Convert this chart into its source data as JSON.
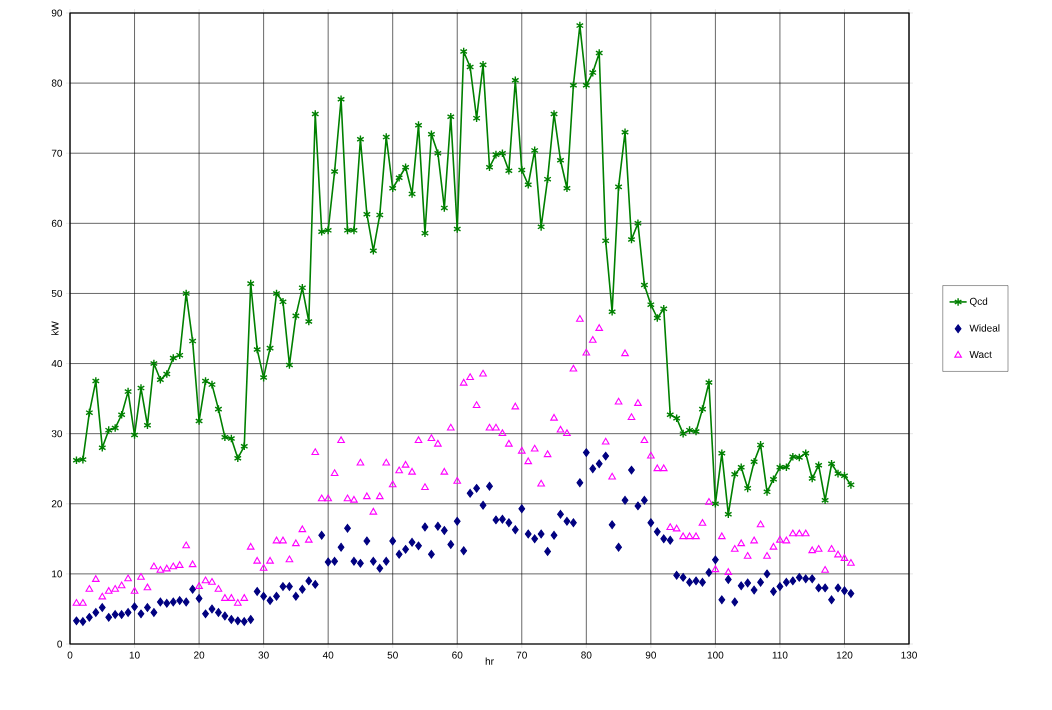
{
  "chart_data": {
    "type": "line",
    "xlabel": "hr",
    "ylabel": "kW",
    "x": [
      1,
      2,
      3,
      4,
      5,
      6,
      7,
      8,
      9,
      10,
      11,
      12,
      13,
      14,
      15,
      16,
      17,
      18,
      19,
      20,
      21,
      22,
      23,
      24,
      25,
      26,
      27,
      28,
      29,
      30,
      31,
      32,
      33,
      34,
      35,
      36,
      37,
      38,
      39,
      40,
      41,
      42,
      43,
      44,
      45,
      46,
      47,
      48,
      49,
      50,
      51,
      52,
      53,
      54,
      55,
      56,
      57,
      58,
      59,
      60,
      61,
      62,
      63,
      64,
      65,
      66,
      67,
      68,
      69,
      70,
      71,
      72,
      73,
      74,
      75,
      76,
      77,
      78,
      79,
      80,
      81,
      82,
      83,
      84,
      85,
      86,
      87,
      88,
      89,
      90,
      91,
      92,
      93,
      94,
      95,
      96,
      97,
      98,
      99,
      100,
      101,
      102,
      103,
      104,
      105,
      106,
      107,
      108,
      109,
      110,
      111,
      112,
      113,
      114,
      115,
      116,
      117,
      118,
      119,
      120,
      121
    ],
    "series": [
      {
        "name": "Qcd",
        "color": "#008000",
        "marker": "cross",
        "line_style": "solid",
        "values": [
          26.2,
          26.3,
          33,
          37.5,
          28,
          30.5,
          30.8,
          32.7,
          36,
          29.8,
          36.5,
          31.2,
          40,
          37.7,
          38.5,
          40.8,
          41.2,
          50,
          43.2,
          31.8,
          37.5,
          37,
          33.5,
          29.5,
          29.3,
          26.5,
          28.2,
          51.4,
          42,
          38,
          42.2,
          50,
          48.8,
          39.8,
          46.8,
          50.8,
          46,
          75.6,
          58.8,
          59,
          67.4,
          77.7,
          59,
          59,
          72,
          61.3,
          56.1,
          61.2,
          72.3,
          65,
          66.5,
          68,
          64.2,
          74,
          58.6,
          72.7,
          70,
          62.2,
          75.2,
          59.2,
          84.5,
          82.3,
          75,
          82.6,
          68,
          69.8,
          70,
          67.5,
          80.4,
          67.6,
          65.5,
          70.4,
          59.5,
          66.3,
          75.6,
          69,
          65,
          79.7,
          88.2,
          79.7,
          81.5,
          84.3,
          57.5,
          47.4,
          65.2,
          73,
          57.7,
          60,
          51.2,
          48.4,
          46.5,
          47.8,
          32.7,
          32.2,
          30,
          30.5,
          30.3,
          33.5,
          37.3,
          20,
          27.2,
          18.5,
          24.2,
          25.2,
          22.2,
          26,
          28.4,
          21.7,
          23.5,
          25.2,
          25.2,
          26.7,
          26.6,
          27.2,
          23.6,
          25.5,
          20.5,
          25.7,
          24.3,
          24,
          22.7
        ]
      },
      {
        "name": "Wideal",
        "type": "scatter",
        "color": "#000080",
        "marker": "diamond",
        "values": [
          3.3,
          3.2,
          3.8,
          4.5,
          5.2,
          3.8,
          4.2,
          4.2,
          4.5,
          5.3,
          4.3,
          5.2,
          4.5,
          6,
          5.8,
          6,
          6.2,
          6,
          7.8,
          6.5,
          4.3,
          5,
          4.5,
          4,
          3.5,
          3.3,
          3.2,
          3.5,
          7.5,
          6.8,
          6.2,
          6.8,
          8.2,
          8.2,
          6.8,
          7.8,
          9,
          8.5,
          15.5,
          11.7,
          11.8,
          13.8,
          16.5,
          11.8,
          11.5,
          14.7,
          11.8,
          10.8,
          11.8,
          14.7,
          12.8,
          13.5,
          14.5,
          14,
          16.7,
          12.8,
          16.8,
          16.2,
          14.2,
          17.5,
          13.3,
          21.5,
          22.2,
          19.8,
          22.5,
          17.7,
          17.8,
          17.3,
          16.3,
          19.3,
          15.7,
          15,
          15.7,
          13.2,
          15.5,
          18.5,
          17.5,
          17.3,
          23,
          27.3,
          25,
          25.7,
          26.8,
          17,
          13.8,
          20.5,
          24.8,
          19.7,
          20.5,
          17.3,
          16,
          15,
          14.8,
          9.8,
          9.5,
          8.8,
          9,
          8.8,
          10.2,
          12,
          6.3,
          9.2,
          6,
          8.3,
          8.7,
          7.7,
          8.8,
          10,
          7.5,
          8.2,
          8.8,
          9,
          9.5,
          9.3,
          9.3,
          8,
          8,
          6.3,
          8,
          7.6,
          7.2
        ]
      },
      {
        "name": "Wact",
        "type": "scatter",
        "color": "#ff00ff",
        "marker": "triangle",
        "values": [
          5.8,
          5.8,
          7.8,
          9.2,
          6.7,
          7.5,
          7.8,
          8.3,
          9.3,
          7.5,
          9.5,
          8,
          11,
          10.5,
          10.7,
          11,
          11.2,
          14,
          11.3,
          8.2,
          9,
          8.8,
          7.8,
          6.5,
          6.5,
          5.8,
          6.5,
          13.8,
          11.8,
          10.8,
          11.8,
          14.7,
          14.7,
          12,
          14.3,
          16.3,
          14.8,
          27.3,
          20.7,
          20.7,
          24.3,
          29,
          20.7,
          20.5,
          25.8,
          21,
          18.8,
          21,
          25.8,
          22.7,
          24.7,
          25.5,
          24.5,
          29,
          22.3,
          29.3,
          28.5,
          24.5,
          30.8,
          23.2,
          37.2,
          38,
          34,
          38.5,
          30.8,
          30.8,
          30,
          28.5,
          33.8,
          27.5,
          26,
          27.8,
          22.8,
          27,
          32.2,
          30.5,
          30,
          39.2,
          46.3,
          41.5,
          43.3,
          45,
          28.8,
          23.8,
          34.5,
          41.4,
          32.3,
          34.3,
          29,
          26.8,
          25,
          25,
          16.6,
          16.4,
          15.3,
          15.3,
          15.3,
          17.2,
          20.2,
          10.6,
          15.3,
          10.2,
          13.5,
          14.3,
          12.5,
          14.7,
          17,
          12.5,
          13.8,
          14.8,
          14.7,
          15.7,
          15.7,
          15.7,
          13.3,
          13.5,
          10.5,
          13.5,
          12.7,
          12.2,
          11.5
        ]
      }
    ],
    "xlim": [
      0,
      130
    ],
    "xticks": [
      0,
      10,
      20,
      30,
      40,
      50,
      60,
      70,
      80,
      90,
      100,
      110,
      120,
      130
    ],
    "ylim": [
      0,
      90
    ],
    "yticks": [
      0,
      10,
      20,
      30,
      40,
      50,
      60,
      70,
      80,
      90
    ],
    "grid": true,
    "legend": "right"
  }
}
